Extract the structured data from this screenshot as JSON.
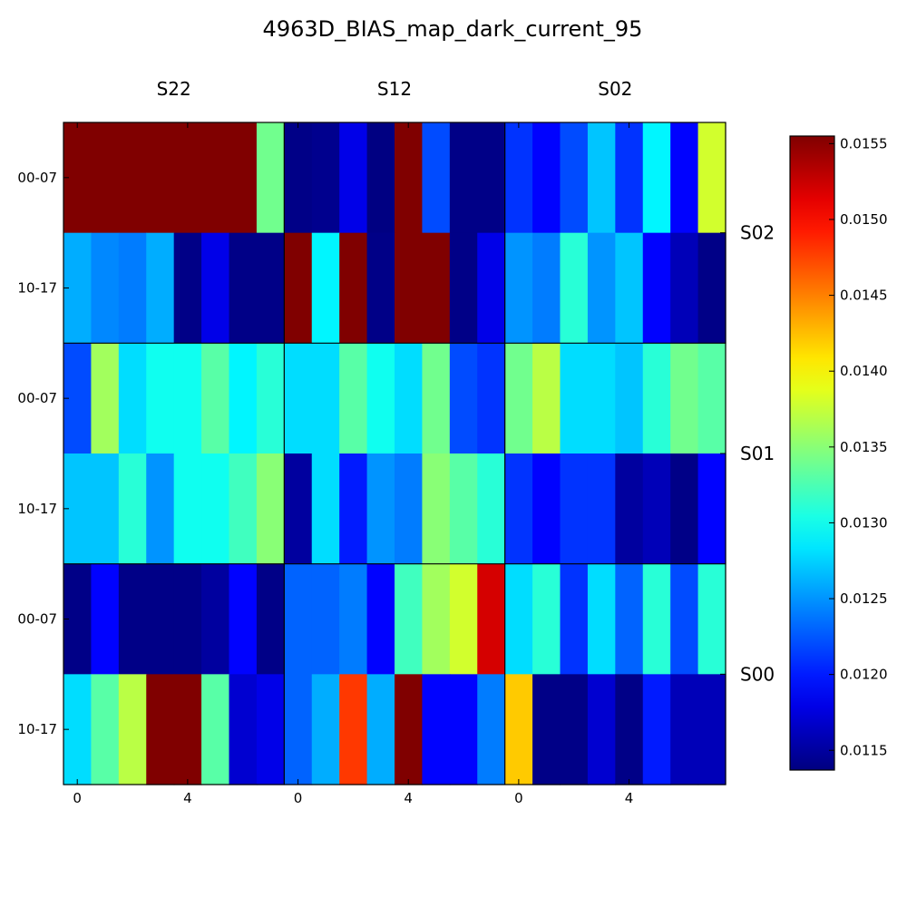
{
  "chart_data": {
    "type": "heatmap",
    "title": "4963D_BIAS_map_dark_current_95",
    "column_groups": [
      "S22",
      "S12",
      "S02"
    ],
    "row_groups": [
      "S02",
      "S01",
      "S00"
    ],
    "row_labels": [
      "00-07",
      "10-17"
    ],
    "x_tick_labels": [
      "0",
      "4"
    ],
    "colorbar": {
      "min": 0.01137,
      "max": 0.01555,
      "ticks": [
        "0.0115",
        "0.0120",
        "0.0125",
        "0.0130",
        "0.0135",
        "0.0140",
        "0.0145",
        "0.0150",
        "0.0155"
      ],
      "colormap": "jet"
    },
    "values": [
      [
        0.01555,
        0.01555,
        0.01555,
        0.01555,
        0.01555,
        0.01555,
        0.01555,
        0.0134,
        0.0114,
        0.01143,
        0.0118,
        0.01138,
        0.01555,
        0.0122,
        0.0114,
        0.0114,
        0.0121,
        0.0119,
        0.0122,
        0.0127,
        0.0121,
        0.0129,
        0.0119,
        0.0138
      ],
      [
        0.0126,
        0.01245,
        0.0124,
        0.0126,
        0.0114,
        0.0118,
        0.0114,
        0.0114,
        0.01555,
        0.0129,
        0.01555,
        0.0114,
        0.01555,
        0.01555,
        0.0114,
        0.0118,
        0.0125,
        0.0124,
        0.0131,
        0.0125,
        0.0127,
        0.0119,
        0.0116,
        0.0114
      ],
      [
        0.0122,
        0.0136,
        0.0128,
        0.013,
        0.013,
        0.0133,
        0.0129,
        0.0131,
        0.0128,
        0.0128,
        0.0133,
        0.013,
        0.0128,
        0.0134,
        0.0122,
        0.0121,
        0.0134,
        0.0137,
        0.0128,
        0.0128,
        0.0127,
        0.0131,
        0.0134,
        0.0133
      ],
      [
        0.0127,
        0.0127,
        0.0131,
        0.0125,
        0.013,
        0.013,
        0.0132,
        0.0135,
        0.0115,
        0.0128,
        0.012,
        0.0125,
        0.0124,
        0.0135,
        0.0133,
        0.0131,
        0.0121,
        0.0119,
        0.0121,
        0.0121,
        0.0115,
        0.0116,
        0.0114,
        0.0119
      ],
      [
        0.0114,
        0.0119,
        0.0114,
        0.0114,
        0.0114,
        0.0115,
        0.0119,
        0.0114,
        0.0123,
        0.0123,
        0.0124,
        0.0119,
        0.0132,
        0.0136,
        0.0138,
        0.0152,
        0.0128,
        0.0131,
        0.0121,
        0.0128,
        0.0123,
        0.0131,
        0.0122,
        0.0131
      ],
      [
        0.0128,
        0.0133,
        0.0137,
        0.01555,
        0.01555,
        0.0133,
        0.0117,
        0.0118,
        0.0123,
        0.0126,
        0.0148,
        0.0126,
        0.01555,
        0.0119,
        0.0119,
        0.0124,
        0.0142,
        0.0114,
        0.0114,
        0.0117,
        0.0114,
        0.012,
        0.0116,
        0.0116
      ]
    ]
  }
}
